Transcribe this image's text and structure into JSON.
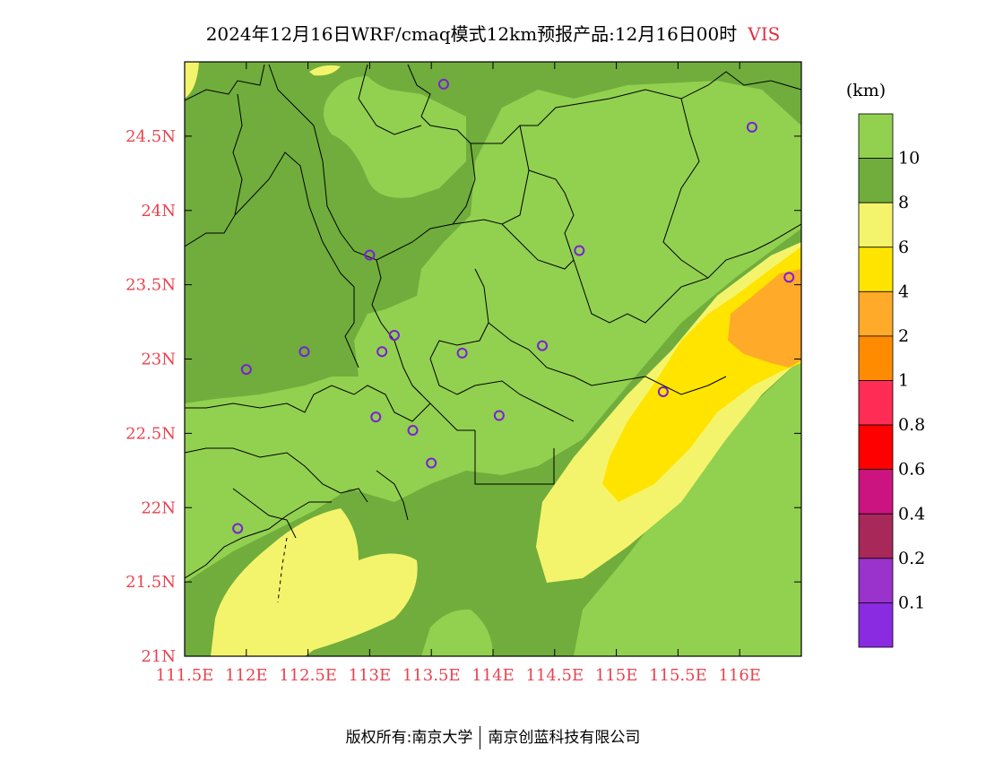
{
  "header": {
    "title": "2024年12月16日WRF/cmaq模式12km预报产品:12月16日00时",
    "variable": "VIS"
  },
  "axes": {
    "lon_labels": [
      "111.5E",
      "112E",
      "112.5E",
      "113E",
      "113.5E",
      "114E",
      "114.5E",
      "115E",
      "115.5E",
      "116E"
    ],
    "lat_labels": [
      "24.5N",
      "24N",
      "23.5N",
      "23N",
      "22.5N",
      "22N",
      "21.5N",
      "21N"
    ],
    "lon_range": [
      111.5,
      116.5
    ],
    "lat_range": [
      21.0,
      25.0
    ]
  },
  "legend": {
    "unit": "(km)",
    "levels": [
      {
        "label": "10",
        "color": "#92d050"
      },
      {
        "label": "8",
        "color": "#70ad3c"
      },
      {
        "label": "6",
        "color": "#f4f46c"
      },
      {
        "label": "4",
        "color": "#ffe400"
      },
      {
        "label": "2",
        "color": "#ffaa28"
      },
      {
        "label": "1",
        "color": "#ff8c00"
      },
      {
        "label": "0.8",
        "color": "#ff2d55"
      },
      {
        "label": "0.6",
        "color": "#ff0000"
      },
      {
        "label": "0.4",
        "color": "#cc1480"
      },
      {
        "label": "0.2",
        "color": "#a8285a"
      },
      {
        "label": "0.1",
        "color": "#9933cc"
      },
      {
        "label": "",
        "color": "#8a2be2"
      }
    ]
  },
  "stations": [
    {
      "lon": 113.6,
      "lat": 24.85
    },
    {
      "lon": 116.1,
      "lat": 24.56
    },
    {
      "lon": 113.0,
      "lat": 23.7
    },
    {
      "lon": 114.7,
      "lat": 23.73
    },
    {
      "lon": 116.4,
      "lat": 23.55
    },
    {
      "lon": 113.2,
      "lat": 23.16
    },
    {
      "lon": 112.47,
      "lat": 23.05
    },
    {
      "lon": 113.1,
      "lat": 23.05
    },
    {
      "lon": 113.75,
      "lat": 23.04
    },
    {
      "lon": 114.4,
      "lat": 23.09
    },
    {
      "lon": 112.0,
      "lat": 22.93
    },
    {
      "lon": 115.38,
      "lat": 22.78
    },
    {
      "lon": 113.05,
      "lat": 22.61
    },
    {
      "lon": 114.05,
      "lat": 22.62
    },
    {
      "lon": 113.35,
      "lat": 22.52
    },
    {
      "lon": 113.5,
      "lat": 22.3
    },
    {
      "lon": 111.93,
      "lat": 21.86
    }
  ],
  "footer": {
    "left": "版权所有:南京大学",
    "right": "南京创蓝科技有限公司"
  }
}
